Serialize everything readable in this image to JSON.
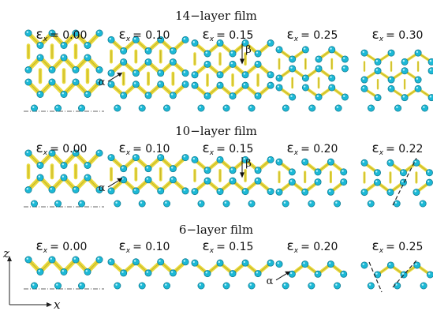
{
  "colors": {
    "bond": "#e9d93c",
    "bond_dark": "#a99a1e",
    "atom": "#1cb9d6",
    "atom_dark": "#117d94"
  },
  "axes": {
    "z_label": "z",
    "x_label": "x"
  },
  "rows": [
    {
      "title": "14−layer film",
      "panels": [
        {
          "label": "ε",
          "sub": "x",
          "value": "= 0.00",
          "strain": 0.0,
          "fracture": "none",
          "annot": ""
        },
        {
          "label": "ε",
          "sub": "x",
          "value": "= 0.10",
          "strain": 0.1,
          "fracture": "none",
          "annot": "α"
        },
        {
          "label": "ε",
          "sub": "x",
          "value": "= 0.15",
          "strain": 0.15,
          "fracture": "none",
          "annot": "β"
        },
        {
          "label": "ε",
          "sub": "x",
          "value": "= 0.25",
          "strain": 0.25,
          "fracture": "none",
          "annot": ""
        },
        {
          "label": "ε",
          "sub": "x",
          "value": "= 0.30",
          "strain": 0.3,
          "fracture": "none",
          "annot": ""
        }
      ]
    },
    {
      "title": "10−layer film",
      "panels": [
        {
          "label": "ε",
          "sub": "x",
          "value": "= 0.00",
          "strain": 0.0,
          "fracture": "none",
          "annot": ""
        },
        {
          "label": "ε",
          "sub": "x",
          "value": "= 0.10",
          "strain": 0.1,
          "fracture": "none",
          "annot": "α"
        },
        {
          "label": "ε",
          "sub": "x",
          "value": "= 0.15",
          "strain": 0.15,
          "fracture": "none",
          "annot": "β"
        },
        {
          "label": "ε",
          "sub": "x",
          "value": "= 0.20",
          "strain": 0.2,
          "fracture": "none",
          "annot": ""
        },
        {
          "label": "ε",
          "sub": "x",
          "value": "= 0.22",
          "strain": 0.22,
          "fracture": "single",
          "annot": ""
        }
      ]
    },
    {
      "title": "6−layer film",
      "panels": [
        {
          "label": "ε",
          "sub": "x",
          "value": "= 0.00",
          "strain": 0.0,
          "fracture": "none",
          "annot": ""
        },
        {
          "label": "ε",
          "sub": "x",
          "value": "= 0.10",
          "strain": 0.1,
          "fracture": "none",
          "annot": ""
        },
        {
          "label": "ε",
          "sub": "x",
          "value": "= 0.15",
          "strain": 0.15,
          "fracture": "none",
          "annot": ""
        },
        {
          "label": "ε",
          "sub": "x",
          "value": "= 0.20",
          "strain": 0.2,
          "fracture": "none",
          "annot": "α"
        },
        {
          "label": "ε",
          "sub": "x",
          "value": "= 0.25",
          "strain": 0.25,
          "fracture": "cross",
          "annot": ""
        }
      ]
    }
  ]
}
